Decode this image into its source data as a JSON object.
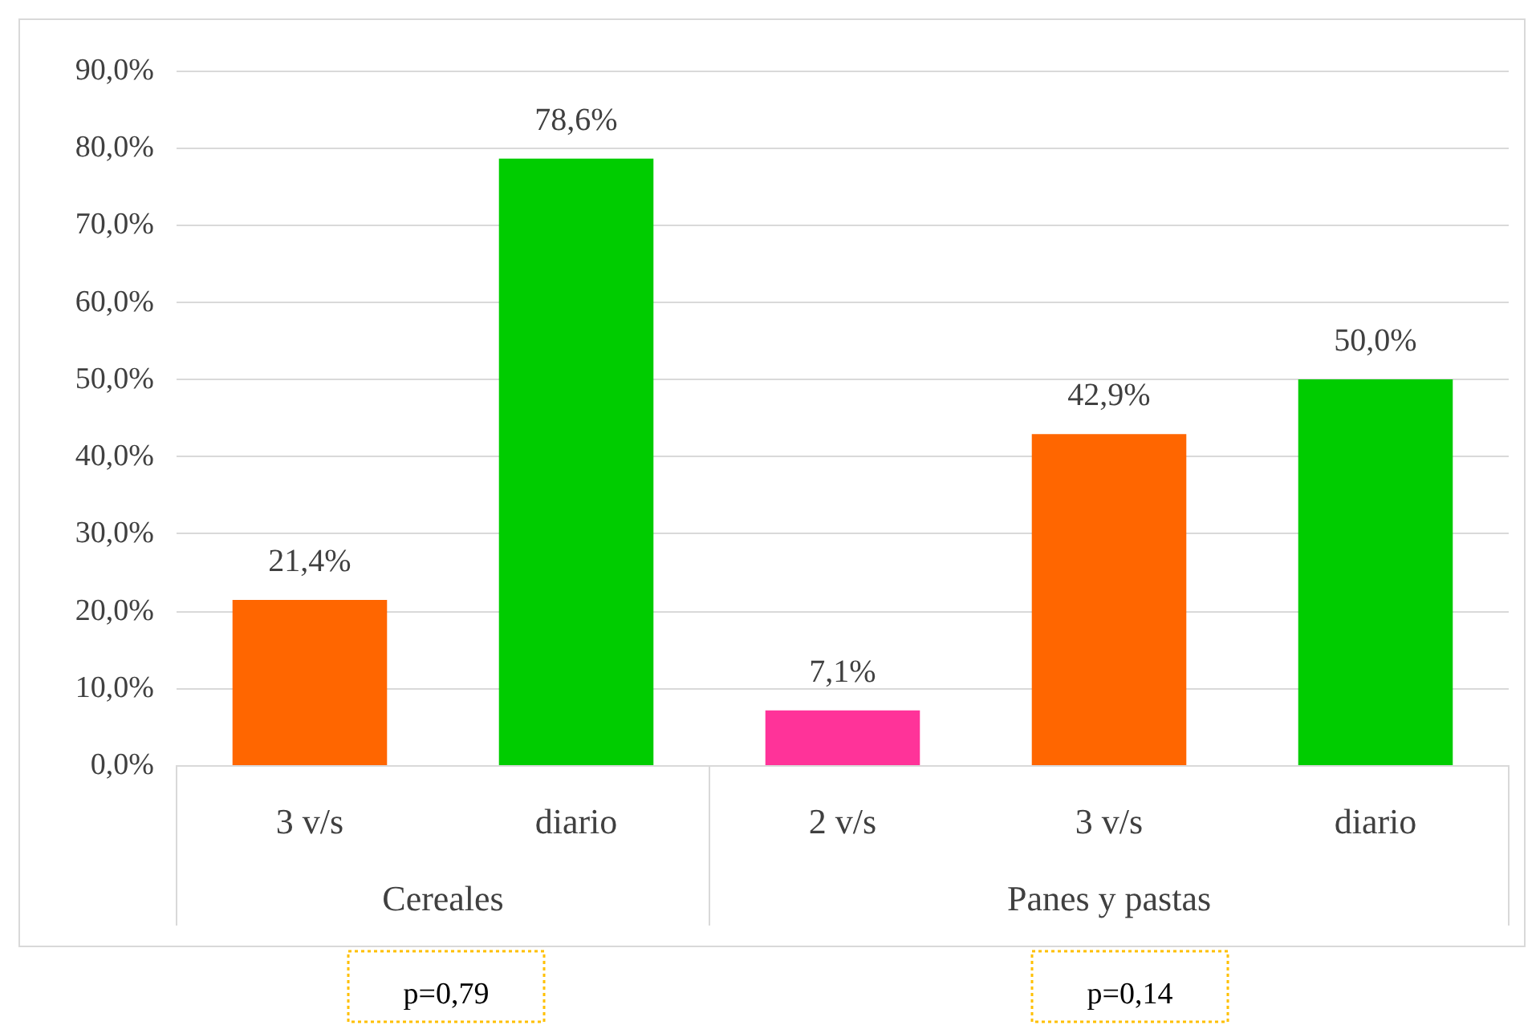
{
  "chart_data": {
    "type": "bar",
    "categories": [
      "3 v/s",
      "diario",
      "2 v/s",
      "3 v/s",
      "diario"
    ],
    "values": [
      21.4,
      78.6,
      7.1,
      42.9,
      50.0
    ],
    "colors": [
      "#ff6600",
      "#00cc00",
      "#ff3399",
      "#ff6600",
      "#00cc00"
    ],
    "value_labels": [
      "21,4%",
      "78,6%",
      "7,1%",
      "42,9%",
      "50,0%"
    ],
    "ylim": [
      0,
      90
    ],
    "yticks": [
      {
        "value": 0,
        "label": "0,0%"
      },
      {
        "value": 10,
        "label": "10,0%"
      },
      {
        "value": 20,
        "label": "20,0%"
      },
      {
        "value": 30,
        "label": "30,0%"
      },
      {
        "value": 40,
        "label": "40,0%"
      },
      {
        "value": 50,
        "label": "50,0%"
      },
      {
        "value": 60,
        "label": "60,0%"
      },
      {
        "value": 70,
        "label": "70,0%"
      },
      {
        "value": 80,
        "label": "80,0%"
      },
      {
        "value": 90,
        "label": "90,0%"
      }
    ],
    "grid": "y",
    "annotations": [
      "Cereales",
      "Panes y pastas",
      "p=0,79",
      "p=0,14"
    ]
  }
}
